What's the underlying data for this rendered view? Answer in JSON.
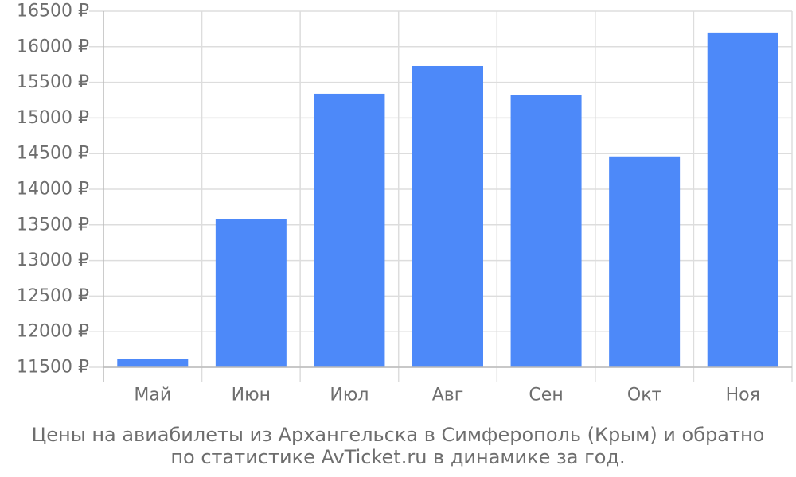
{
  "chart_data": {
    "type": "bar",
    "categories": [
      "Май",
      "Июн",
      "Июл",
      "Авг",
      "Сен",
      "Окт",
      "Ноя"
    ],
    "series": [
      {
        "values": [
          11620,
          13580,
          15340,
          15730,
          15320,
          14460,
          16200
        ],
        "color": "#4d89f9"
      }
    ],
    "ylim": [
      11500,
      16500
    ],
    "yticks": [
      11500,
      12000,
      12500,
      13000,
      13500,
      14000,
      14500,
      15000,
      15500,
      16000,
      16500
    ],
    "ytick_suffix": " ₽",
    "grid": true,
    "legend": "none",
    "caption": [
      "Цены на авиабилеты из Архангельска в Симферополь (Крым) и обратно",
      "по статистике AvTicket.ru в динамике за год."
    ]
  },
  "colors": {
    "bar": "#4d89f9",
    "grid": "#dddddd",
    "axis": "#bbbbbb",
    "text": "#6e6e6e"
  }
}
